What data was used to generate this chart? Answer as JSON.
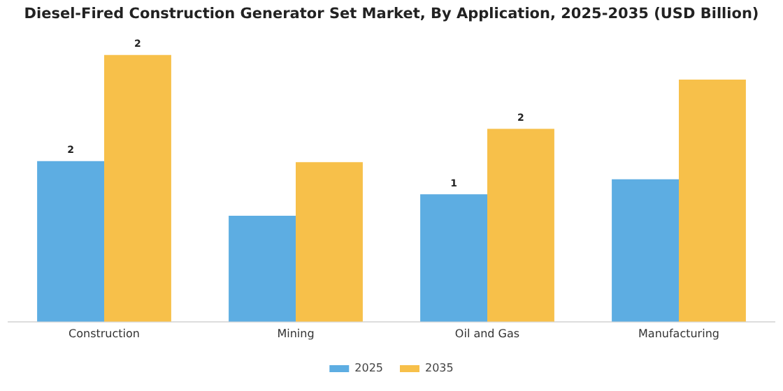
{
  "chart_data": {
    "type": "bar",
    "title": "Diesel-Fired Construction Generator Set Market, By Application, 2025-2035 (USD Billion)",
    "categories": [
      "Construction",
      "Mining",
      "Oil and Gas",
      "Manufacturing"
    ],
    "series": [
      {
        "name": "2025",
        "color": "#5dade2",
        "values": [
          1.5,
          0.99,
          1.19,
          1.33
        ],
        "value_labels": [
          "2",
          null,
          "1",
          null
        ]
      },
      {
        "name": "2035",
        "color": "#f7c04a",
        "values": [
          2.49,
          1.49,
          1.8,
          2.26
        ],
        "value_labels": [
          "2",
          null,
          "2",
          null
        ]
      }
    ],
    "legend": "bottom",
    "grid": false
  }
}
